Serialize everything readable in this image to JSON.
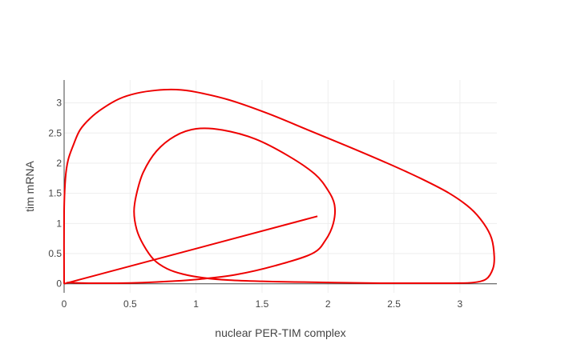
{
  "chart_data": {
    "type": "line",
    "title": "",
    "xlabel": "nuclear PER-TIM complex",
    "ylabel": "tim mRNA",
    "xlim": [
      0,
      3.28
    ],
    "ylim": [
      -0.15,
      3.38
    ],
    "x_ticks": [
      0,
      0.5,
      1,
      1.5,
      2,
      2.5,
      3
    ],
    "x_tick_labels": [
      "0",
      "0.5",
      "1",
      "1.5",
      "2",
      "2.5",
      "3"
    ],
    "y_ticks": [
      0,
      0.5,
      1,
      1.5,
      2,
      2.5,
      3
    ],
    "y_tick_labels": [
      "0",
      "0.5",
      "1",
      "1.5",
      "2",
      "2.5",
      "3"
    ],
    "grid": true,
    "legend": "none",
    "series": [
      {
        "color": "#ee0000",
        "x": [
          0.0,
          0.0,
          0.01,
          0.03,
          0.07,
          0.12,
          0.2,
          0.3,
          0.42,
          0.55,
          0.7,
          0.85,
          1.0,
          1.25,
          1.55,
          1.85,
          2.15,
          2.45,
          2.7,
          2.92,
          3.08,
          3.18,
          3.24,
          3.26,
          3.25,
          3.2,
          3.1,
          2.95,
          2.7,
          2.4,
          2.05,
          1.75,
          1.5,
          1.25,
          1.05,
          0.9,
          0.78,
          0.68,
          0.6,
          0.55,
          0.53,
          0.55,
          0.6,
          0.7,
          0.84,
          1.0,
          1.2,
          1.45,
          1.7,
          1.9,
          2.0,
          2.05,
          2.04,
          1.98,
          1.88,
          1.6,
          1.3,
          1.0,
          0.8,
          0.6,
          0.4,
          0.2,
          0.02
        ],
        "y": [
          0.0,
          1.2,
          1.75,
          2.05,
          2.3,
          2.55,
          2.75,
          2.92,
          3.07,
          3.16,
          3.21,
          3.22,
          3.18,
          3.05,
          2.82,
          2.55,
          2.28,
          2.0,
          1.75,
          1.5,
          1.25,
          1.0,
          0.75,
          0.45,
          0.25,
          0.08,
          0.02,
          0.01,
          0.01,
          0.01,
          0.02,
          0.03,
          0.04,
          0.06,
          0.1,
          0.16,
          0.25,
          0.4,
          0.65,
          0.9,
          1.2,
          1.5,
          1.85,
          2.2,
          2.45,
          2.57,
          2.55,
          2.4,
          2.12,
          1.82,
          1.55,
          1.3,
          1.0,
          0.72,
          0.5,
          0.3,
          0.15,
          0.07,
          0.04,
          0.02,
          0.01,
          0.01,
          0.02
        ]
      }
    ],
    "ray": {
      "color": "#ee0000",
      "x": [
        0.0,
        1.92
      ],
      "y": [
        0.0,
        1.12
      ]
    }
  }
}
